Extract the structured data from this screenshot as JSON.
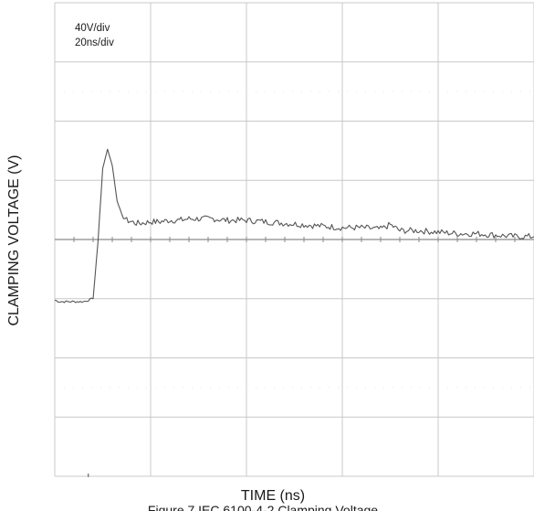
{
  "chart_data": {
    "type": "line",
    "title": "",
    "xlabel": "TIME (ns)",
    "ylabel": "CLAMPING VOLTAGE (V)",
    "scale": {
      "vertical": "40V/div",
      "horizontal": "20ns/div"
    },
    "caption": "Figure 7 IEC 6100-4-2 Clamping Voltage",
    "grid": true,
    "grid_divisions": {
      "x": 5,
      "y": 8
    },
    "xlim": [
      0,
      100
    ],
    "ylim": [
      -80,
      240
    ],
    "x_unit": "ns",
    "y_unit": "V",
    "series": [
      {
        "x": [
          0,
          1,
          2,
          3,
          4,
          5,
          6,
          7,
          8,
          9,
          10,
          11,
          12,
          13,
          14,
          15,
          16,
          17,
          18,
          20,
          22,
          24,
          26,
          28,
          30,
          33,
          36,
          40,
          44,
          48,
          52,
          56,
          60,
          64,
          68,
          70,
          72,
          76,
          80,
          84,
          88,
          92,
          96,
          100
        ],
        "y": [
          39,
          38,
          38,
          38,
          38,
          38,
          38,
          39,
          40,
          78,
          128,
          141,
          130,
          106,
          97,
          93,
          92,
          91,
          91,
          92,
          92,
          93,
          93,
          94,
          94,
          94,
          93,
          93,
          92,
          91,
          90,
          89,
          88,
          88,
          87,
          90,
          86,
          86,
          85,
          84,
          84,
          83,
          82,
          82
        ]
      }
    ]
  },
  "colors": {
    "trace": "#555555",
    "grid": "#c8c8c8",
    "center_axis": "#8a8a8a",
    "text": "#1a1a1a",
    "background": "#ffffff"
  }
}
